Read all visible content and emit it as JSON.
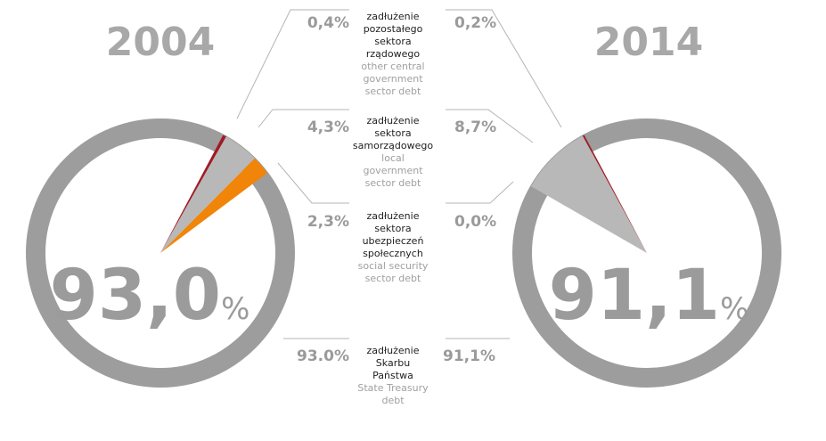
{
  "chart_data": [
    {
      "type": "pie",
      "title": "2004",
      "center_value": "93,0",
      "center_unit": "%",
      "slices": [
        {
          "key": "treasury",
          "value": 93.0,
          "label": "93,0%",
          "color": "#9d9d9d"
        },
        {
          "key": "other_central",
          "value": 0.4,
          "label": "0,4%",
          "color": "#a01a24"
        },
        {
          "key": "local",
          "value": 4.3,
          "label": "4,3%",
          "color": "#b8b8b8"
        },
        {
          "key": "social",
          "value": 2.3,
          "label": "2,3%",
          "color": "#f0850a"
        }
      ]
    },
    {
      "type": "pie",
      "title": "2014",
      "center_value": "91,1",
      "center_unit": "%",
      "slices": [
        {
          "key": "treasury",
          "value": 91.1,
          "label": "91,1%",
          "color": "#9d9d9d"
        },
        {
          "key": "other_central",
          "value": 0.2,
          "label": "0,2%",
          "color": "#a01a24"
        },
        {
          "key": "local",
          "value": 8.7,
          "label": "8,7%",
          "color": "#b8b8b8"
        },
        {
          "key": "social",
          "value": 0.0,
          "label": "0,0%",
          "color": "#f0850a"
        }
      ]
    }
  ],
  "categories": [
    {
      "key": "other_central",
      "label_pl": [
        "zadłużenie",
        "pozostałego",
        "sektora",
        "rządowego"
      ],
      "label_en": [
        "other central",
        "government",
        "sector debt"
      ],
      "value_2004": "0,4%",
      "value_2014": "0,2%"
    },
    {
      "key": "local",
      "label_pl": [
        "zadłużenie",
        "sektora",
        "samorządowego"
      ],
      "label_en": [
        "local",
        "government",
        "sector debt"
      ],
      "value_2004": "4,3%",
      "value_2014": "8,7%"
    },
    {
      "key": "social",
      "label_pl": [
        "zadłużenie",
        "sektora",
        "ubezpieczeń",
        "społecznych"
      ],
      "label_en": [
        "social security",
        "sector debt"
      ],
      "value_2004": "2,3%",
      "value_2014": "0,0%"
    },
    {
      "key": "treasury",
      "label_pl": [
        "zadłużenie",
        "Skarbu",
        "Państwa"
      ],
      "label_en": [
        "State Treasury",
        "debt"
      ],
      "value_2004": "93.0%",
      "value_2014": "91,1%"
    }
  ]
}
